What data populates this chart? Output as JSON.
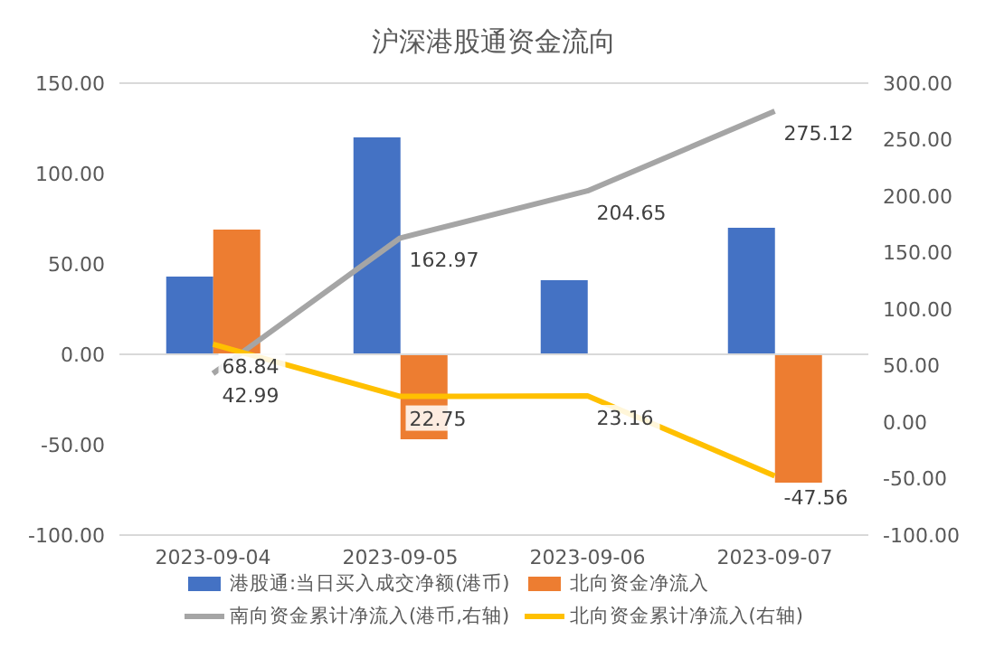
{
  "chart_data": {
    "type": "bar",
    "title": "沪深港股通资金流向",
    "categories": [
      "2023-09-04",
      "2023-09-05",
      "2023-09-06",
      "2023-09-07"
    ],
    "series": [
      {
        "name": "港股通:当日买入成交净额(港币)",
        "color": "#4472c4",
        "values": [
          43,
          120,
          41,
          70
        ]
      },
      {
        "name": "北向资金净流入",
        "color": "#ed7d31",
        "values": [
          69,
          -47,
          null,
          -71
        ]
      },
      {
        "name": "南向资金累计净流入(港币,右轴)",
        "type": "line",
        "axis": "y2",
        "color": "#a5a5a5",
        "values": [
          42.99,
          162.97,
          204.65,
          275.12
        ],
        "value_labels": [
          "42.99",
          "162.97",
          "204.65",
          "275.12"
        ]
      },
      {
        "name": "北向资金累计净流入(右轴)",
        "type": "line",
        "axis": "y2",
        "color": "#ffc000",
        "values": [
          68.84,
          22.75,
          23.16,
          -47.56
        ],
        "value_labels": [
          "68.84",
          "22.75",
          "23.16",
          "-47.56"
        ]
      }
    ],
    "ylim": [
      -100,
      150
    ],
    "yticks": [
      {
        "value": -100,
        "label": "-100.00"
      },
      {
        "value": -50,
        "label": "-50.00"
      },
      {
        "value": 0,
        "label": "0.00"
      },
      {
        "value": 50,
        "label": "50.00"
      },
      {
        "value": 100,
        "label": "100.00"
      },
      {
        "value": 150,
        "label": "150.00"
      }
    ],
    "y2lim": [
      -100,
      300
    ],
    "y2ticks": [
      {
        "value": -100,
        "label": "-100.00"
      },
      {
        "value": -50,
        "label": "-50.00"
      },
      {
        "value": 0,
        "label": "0.00"
      },
      {
        "value": 50,
        "label": "50.00"
      },
      {
        "value": 100,
        "label": "100.00"
      },
      {
        "value": 150,
        "label": "150.00"
      },
      {
        "value": 200,
        "label": "200.00"
      },
      {
        "value": 250,
        "label": "250.00"
      },
      {
        "value": 300,
        "label": "300.00"
      }
    ],
    "grid": "y",
    "legend": "bottom",
    "marker": "none",
    "line_style": "solid"
  }
}
